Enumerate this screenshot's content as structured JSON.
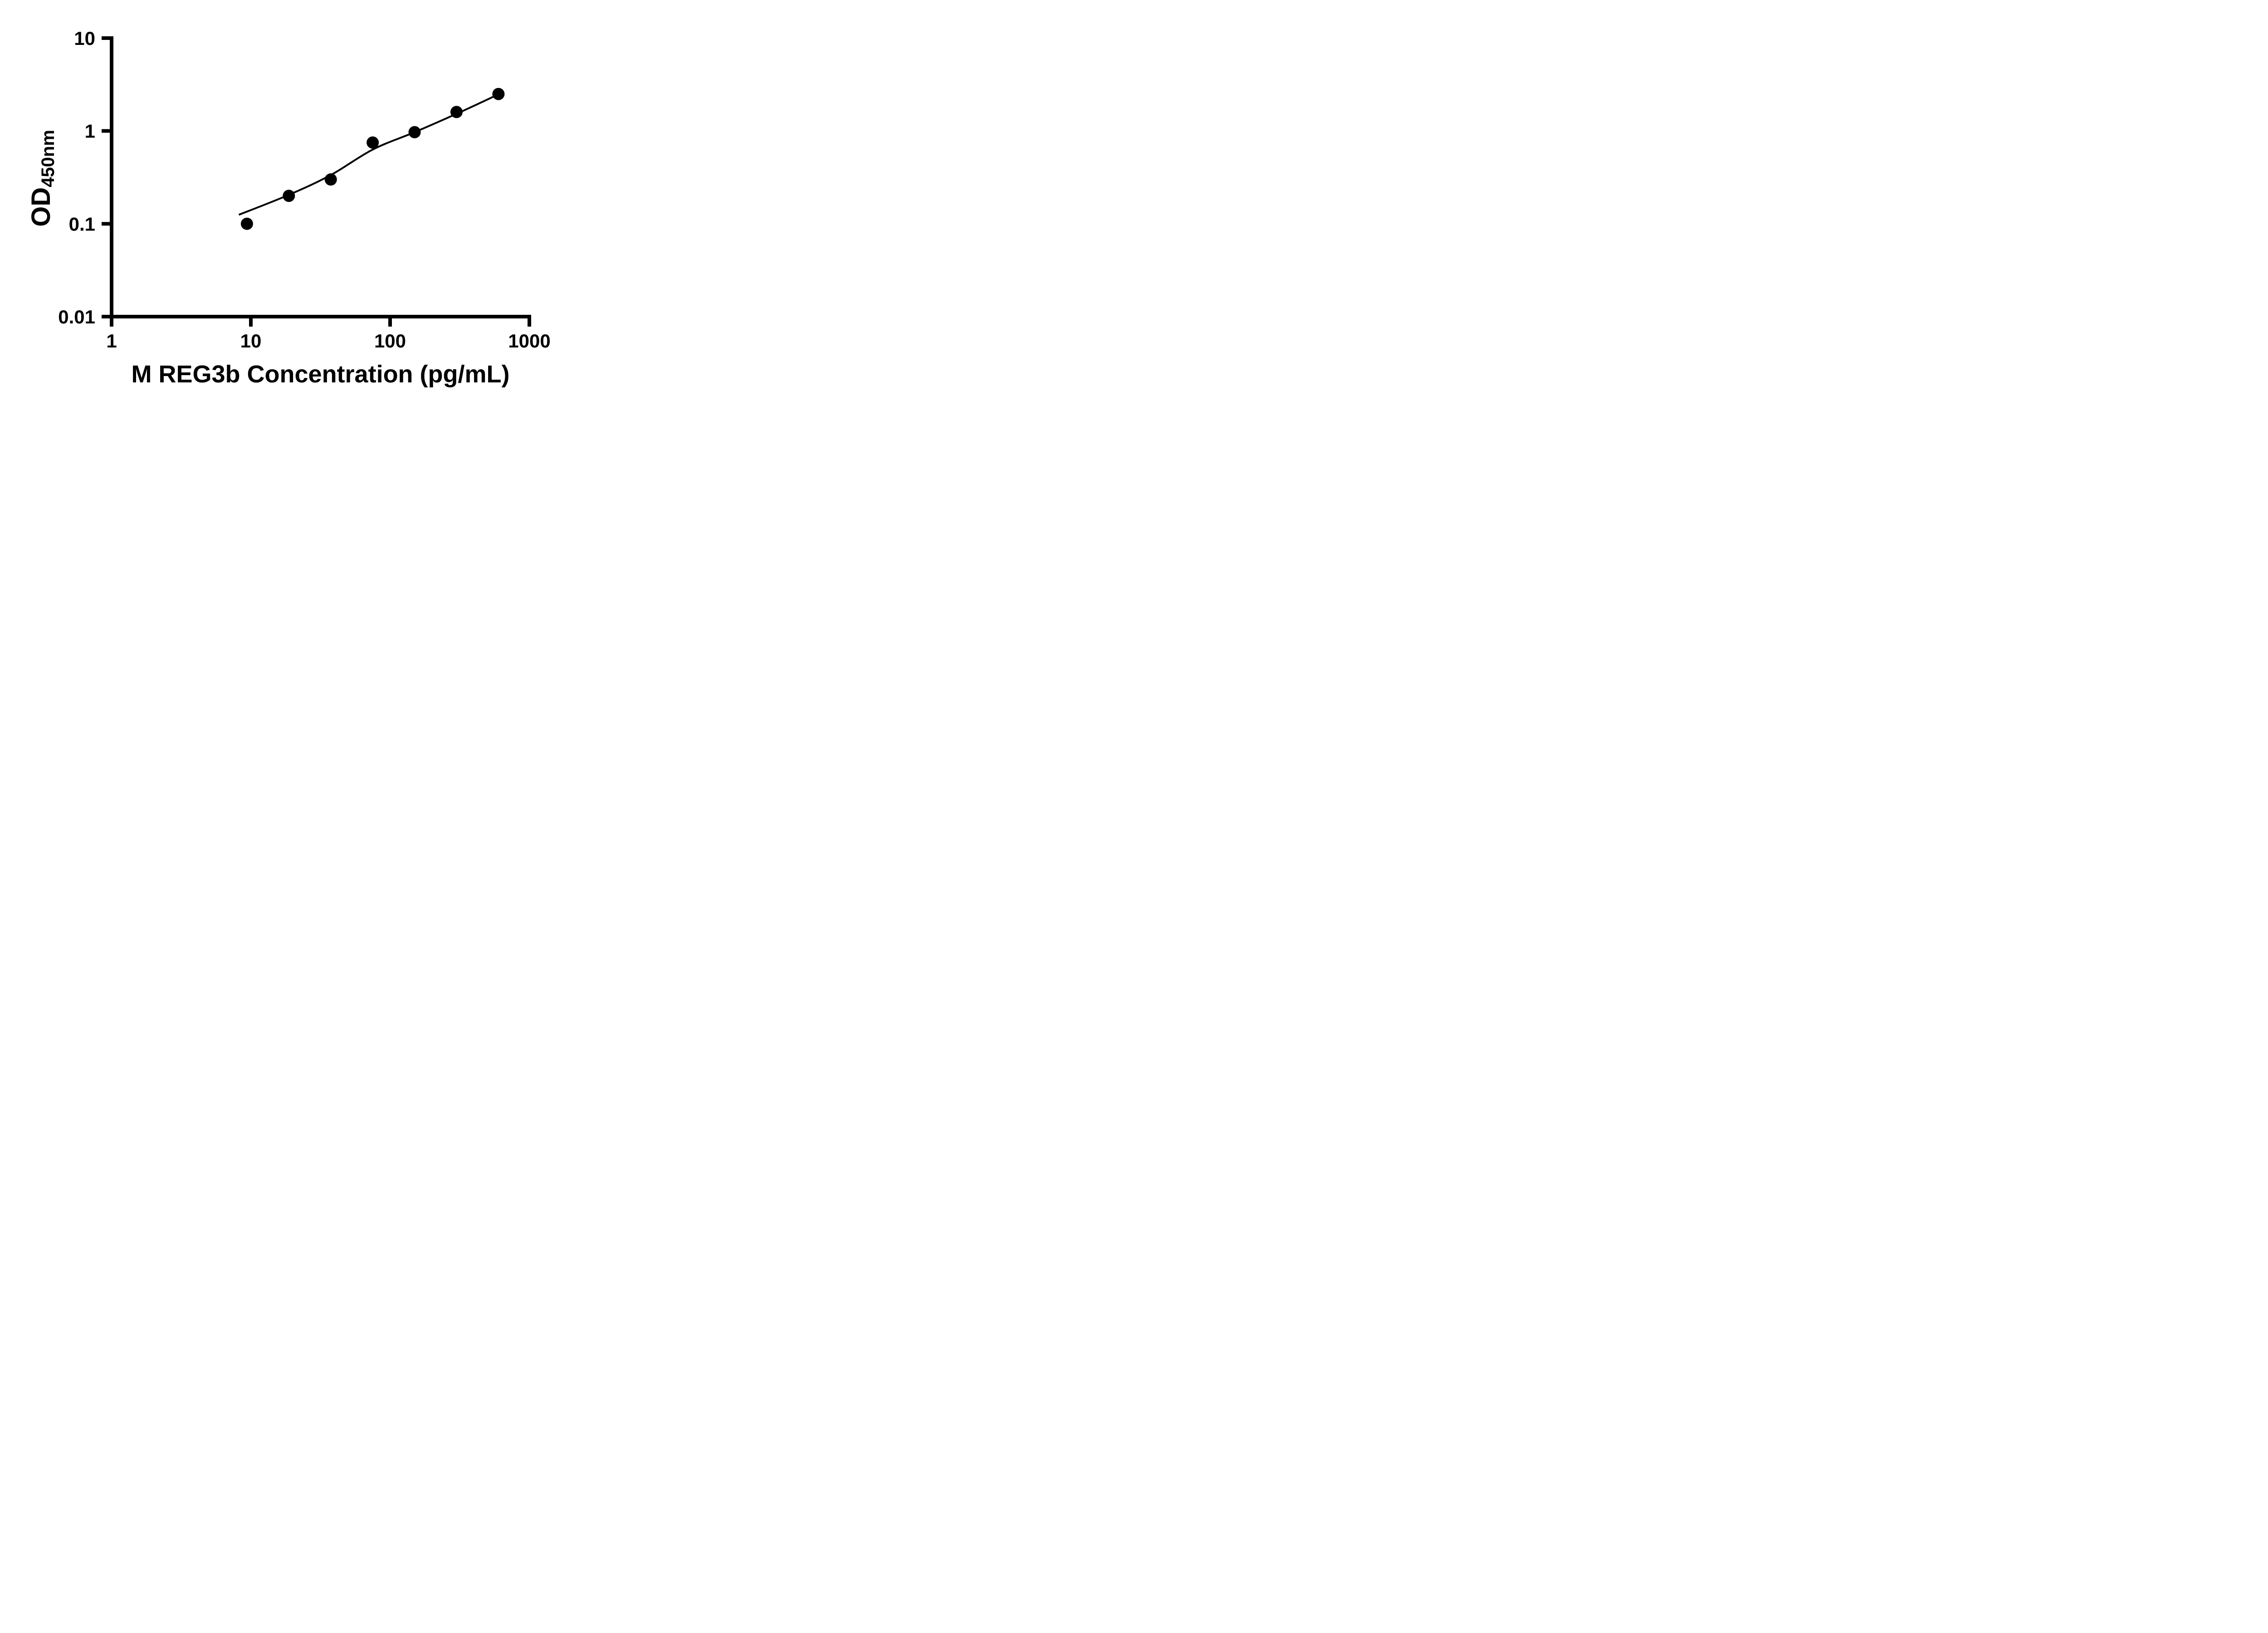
{
  "chart_data": {
    "type": "scatter",
    "title": "",
    "xlabel": "M REG3b Concentration (pg/mL)",
    "ylabel": "OD",
    "ylabel_subscript": "450nm",
    "x_scale": "log",
    "y_scale": "log",
    "xlim": [
      1,
      1000
    ],
    "ylim": [
      0.01,
      10
    ],
    "x_ticks": [
      1,
      10,
      100,
      1000
    ],
    "x_tick_labels": [
      "1",
      "10",
      "100",
      "1000"
    ],
    "y_ticks": [
      0.01,
      0.1,
      1,
      10
    ],
    "y_tick_labels": [
      "0.01",
      "0.1",
      "1",
      "10"
    ],
    "grid": "off",
    "legend": "none",
    "background_color": "#ffffff",
    "axis_color": "#000000",
    "series": [
      {
        "name": "standard-curve-fit-line",
        "type": "line",
        "color": "#000000",
        "points": [
          {
            "x": 8.2,
            "y": 0.125
          },
          {
            "x": 18.75,
            "y": 0.205
          },
          {
            "x": 37.5,
            "y": 0.335
          },
          {
            "x": 75,
            "y": 0.63
          },
          {
            "x": 150,
            "y": 0.97
          },
          {
            "x": 300,
            "y": 1.53
          },
          {
            "x": 600,
            "y": 2.48
          }
        ]
      },
      {
        "name": "standard-data-points",
        "type": "scatter",
        "color": "#000000",
        "points": [
          {
            "x": 9.375,
            "y": 0.1
          },
          {
            "x": 18.75,
            "y": 0.2
          },
          {
            "x": 37.5,
            "y": 0.3
          },
          {
            "x": 75,
            "y": 0.75
          },
          {
            "x": 150,
            "y": 0.97
          },
          {
            "x": 300,
            "y": 1.6
          },
          {
            "x": 600,
            "y": 2.5
          }
        ]
      }
    ]
  }
}
